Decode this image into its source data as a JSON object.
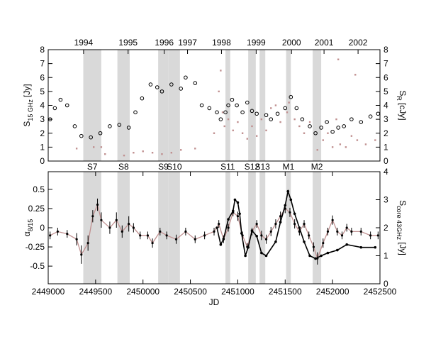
{
  "chart_data": [
    {
      "type": "scatter",
      "ylabel": {
        "main": "S",
        "sub": "15 GHz",
        "unit": "[Jy]"
      },
      "y2label": {
        "main": "S",
        "sub": "R",
        "unit": "[cJy]"
      },
      "xlim": [
        2449000,
        2452500
      ],
      "ylim": [
        0,
        8
      ],
      "y2lim": [
        0,
        8
      ],
      "yticks": [
        0,
        1,
        2,
        3,
        4,
        5,
        6,
        7,
        8
      ],
      "y2ticks": [
        0,
        1,
        2,
        3,
        4,
        5,
        6,
        7,
        8
      ],
      "x2ticks": [
        {
          "value": 2449373,
          "label": "1994"
        },
        {
          "value": 2449843,
          "label": "1995"
        },
        {
          "value": 2450224,
          "label": "1996"
        },
        {
          "value": 2450470,
          "label": "1997"
        },
        {
          "value": 2450828,
          "label": "1998"
        },
        {
          "value": 2451194,
          "label": "1999"
        },
        {
          "value": 2451567,
          "label": "2000"
        },
        {
          "value": 2451910,
          "label": "2001"
        },
        {
          "value": 2452269,
          "label": "2002"
        }
      ],
      "band_color": "#d9d9d9",
      "bands": [
        {
          "label": "S7",
          "start": 2449370,
          "end": 2449560
        },
        {
          "label": "S8",
          "start": 2449730,
          "end": 2449860
        },
        {
          "label": "S9",
          "start": 2450160,
          "end": 2450270
        },
        {
          "label": "S10",
          "start": 2450270,
          "end": 2450390
        },
        {
          "label": "S11",
          "start": 2450870,
          "end": 2450920
        },
        {
          "label": "S12",
          "start": 2451110,
          "end": 2451190
        },
        {
          "label": "S13",
          "start": 2451230,
          "end": 2451290
        },
        {
          "label": "M1",
          "start": 2451510,
          "end": 2451560
        },
        {
          "label": "M2",
          "start": 2451790,
          "end": 2451880
        }
      ],
      "series": [
        {
          "style": "circles",
          "color": "#000000",
          "x": [
            2449020,
            2449070,
            2449130,
            2449200,
            2449280,
            2449350,
            2449450,
            2449550,
            2449650,
            2449750,
            2449850,
            2449920,
            2449990,
            2450080,
            2450150,
            2450200,
            2450300,
            2450400,
            2450450,
            2450550,
            2450620,
            2450700,
            2450780,
            2450820,
            2450870,
            2450900,
            2450940,
            2450990,
            2451050,
            2451100,
            2451150,
            2451200,
            2451300,
            2451350,
            2451420,
            2451500,
            2451560,
            2451620,
            2451680,
            2451760,
            2451820,
            2451880,
            2451940,
            2452000,
            2452060,
            2452120,
            2452200,
            2452300,
            2452400,
            2452480
          ],
          "values": [
            3.0,
            3.8,
            4.4,
            4.0,
            2.5,
            1.8,
            1.7,
            2.0,
            2.5,
            2.6,
            2.4,
            3.5,
            4.5,
            5.5,
            5.3,
            5.0,
            5.5,
            5.2,
            6.0,
            5.6,
            4.0,
            3.8,
            3.5,
            3.0,
            3.5,
            4.0,
            4.4,
            4.0,
            3.5,
            4.2,
            3.6,
            3.4,
            3.3,
            3.0,
            3.4,
            3.8,
            4.6,
            3.8,
            3.0,
            2.5,
            2.0,
            2.4,
            2.8,
            2.1,
            2.4,
            2.5,
            3.0,
            2.8,
            3.2,
            3.4
          ]
        },
        {
          "style": "dots",
          "color": "#c09090",
          "axis": "y2",
          "x": [
            2449300,
            2449480,
            2449560,
            2449600,
            2449800,
            2449900,
            2450000,
            2450100,
            2450200,
            2450300,
            2450400,
            2450550,
            2450750,
            2450800,
            2450820,
            2450840,
            2450860,
            2450900,
            2450950,
            2451000,
            2451050,
            2451100,
            2451150,
            2451200,
            2451250,
            2451300,
            2451350,
            2451400,
            2451450,
            2451520,
            2451540,
            2451600,
            2451650,
            2451700,
            2451760,
            2451840,
            2451900,
            2451950,
            2452000,
            2452040,
            2452060,
            2452080,
            2452140,
            2452200,
            2452240,
            2452260,
            2452350,
            2452450
          ],
          "values": [
            0.9,
            1.0,
            1.0,
            0.5,
            0.4,
            0.6,
            0.7,
            0.6,
            0.5,
            0.6,
            0.8,
            0.9,
            2.0,
            5.0,
            6.5,
            3.5,
            2.5,
            3.0,
            2.2,
            2.8,
            2.0,
            1.6,
            2.5,
            1.8,
            3.0,
            2.2,
            3.8,
            4.0,
            2.8,
            3.5,
            4.2,
            3.0,
            2.5,
            2.0,
            2.8,
            0.8,
            1.5,
            2.0,
            1.0,
            3.0,
            7.3,
            1.2,
            1.0,
            1.8,
            6.2,
            1.5,
            1.2,
            1.5
          ]
        }
      ]
    },
    {
      "type": "line",
      "xlabel": "JD",
      "ylabel": {
        "main": "α",
        "sub": "8/15",
        "unit": ""
      },
      "y2label": {
        "main": "S",
        "sub": "core 43GHz",
        "unit": "[Jy]"
      },
      "xlim": [
        2449000,
        2452500
      ],
      "ylim": [
        -0.73,
        0.73
      ],
      "y2lim": [
        0,
        4
      ],
      "xticks": [
        2449000,
        2449500,
        2450000,
        2450500,
        2451000,
        2451500,
        2452000,
        2452500
      ],
      "yticks": [
        -0.5,
        -0.25,
        0,
        0.25,
        0.5
      ],
      "y2ticks": [
        0,
        1,
        2,
        3,
        4
      ],
      "series": [
        {
          "style": "line-errors",
          "color": "#c09090",
          "point_color": "#000000",
          "x": [
            2449020,
            2449100,
            2449200,
            2449300,
            2449350,
            2449420,
            2449470,
            2449520,
            2449560,
            2449650,
            2449720,
            2449780,
            2449850,
            2449900,
            2449970,
            2450050,
            2450100,
            2450180,
            2450250,
            2450350,
            2450450,
            2450550,
            2450650,
            2450750,
            2450800,
            2450850,
            2450900,
            2450950,
            2451000,
            2451050,
            2451100,
            2451150,
            2451200,
            2451250,
            2451300,
            2451350,
            2451400,
            2451450,
            2451500,
            2451550,
            2451600,
            2451650,
            2451700,
            2451750,
            2451800,
            2451840,
            2451900,
            2451950,
            2452000,
            2452050,
            2452100,
            2452150,
            2452200,
            2452300,
            2452400,
            2452480
          ],
          "values": [
            -0.1,
            -0.05,
            -0.08,
            -0.15,
            -0.35,
            -0.2,
            0.15,
            0.3,
            0.1,
            0.0,
            0.1,
            -0.05,
            0.05,
            0.0,
            -0.1,
            -0.1,
            -0.2,
            -0.05,
            -0.1,
            -0.15,
            -0.05,
            -0.15,
            -0.1,
            -0.05,
            0.05,
            -0.15,
            0.0,
            0.2,
            0.15,
            -0.1,
            -0.25,
            -0.05,
            0.05,
            -0.1,
            -0.15,
            -0.05,
            0.05,
            0.15,
            0.25,
            0.2,
            0.05,
            -0.05,
            0.05,
            -0.1,
            -0.25,
            -0.4,
            -0.2,
            -0.05,
            0.1,
            -0.05,
            -0.1,
            0.0,
            -0.05,
            -0.05,
            -0.1,
            -0.1
          ],
          "errors": [
            0.05,
            0.05,
            0.05,
            0.08,
            0.12,
            0.1,
            0.08,
            0.08,
            0.1,
            0.08,
            0.1,
            0.08,
            0.1,
            0.06,
            0.05,
            0.05,
            0.06,
            0.05,
            0.05,
            0.06,
            0.05,
            0.05,
            0.05,
            0.05,
            0.05,
            0.05,
            0.05,
            0.05,
            0.06,
            0.05,
            0.05,
            0.05,
            0.05,
            0.06,
            0.06,
            0.06,
            0.06,
            0.06,
            0.06,
            0.06,
            0.06,
            0.05,
            0.05,
            0.05,
            0.06,
            0.08,
            0.06,
            0.05,
            0.06,
            0.05,
            0.05,
            0.05,
            0.05,
            0.05,
            0.05,
            0.05
          ]
        },
        {
          "style": "line-points",
          "color": "#000000",
          "axis": "y2",
          "x": [
            2450780,
            2450820,
            2450850,
            2450900,
            2450950,
            2450970,
            2451000,
            2451020,
            2451040,
            2451080,
            2451110,
            2451150,
            2451200,
            2451250,
            2451300,
            2451400,
            2451450,
            2451500,
            2451530,
            2451560,
            2451600,
            2451650,
            2451700,
            2451760,
            2451820,
            2451880,
            2451950,
            2452050,
            2452150,
            2452300,
            2452450
          ],
          "values": [
            2.0,
            1.4,
            1.6,
            2.3,
            2.6,
            3.0,
            2.9,
            2.5,
            1.8,
            1.0,
            1.3,
            1.9,
            1.7,
            1.1,
            1.0,
            1.5,
            2.2,
            2.8,
            3.3,
            3.0,
            2.5,
            2.0,
            1.5,
            1.0,
            0.9,
            1.0,
            1.1,
            1.2,
            1.4,
            1.3,
            1.3
          ]
        }
      ]
    }
  ]
}
